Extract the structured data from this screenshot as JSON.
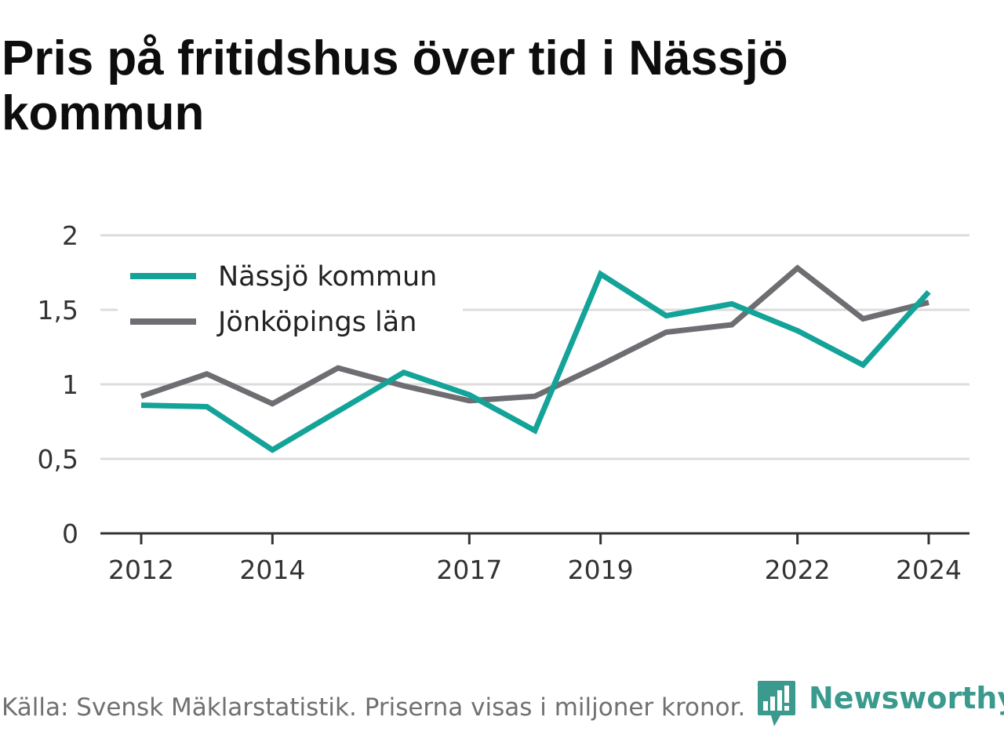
{
  "title": "Pris på fritidshus över tid i Nässjö kommun",
  "footer": {
    "source": "Källa: Svensk Mäklarstatistik. Priserna visas i miljoner kronor."
  },
  "brand": {
    "name": "Newsworthy",
    "icon": "newsworthy-logo-icon",
    "color": "#3a9a8d"
  },
  "chart_data": {
    "type": "line",
    "title": "Pris på fritidshus över tid i Nässjö kommun",
    "xlabel": "",
    "ylabel": "",
    "x": [
      2012,
      2013,
      2014,
      2015,
      2016,
      2017,
      2018,
      2019,
      2020,
      2021,
      2022,
      2023,
      2024
    ],
    "x_ticks": [
      2012,
      2014,
      2017,
      2019,
      2022,
      2024
    ],
    "y_ticks": [
      "0",
      "0,5",
      "1",
      "1,5",
      "2"
    ],
    "y_tick_values": [
      0,
      0.5,
      1,
      1.5,
      2
    ],
    "ylim": [
      0,
      2
    ],
    "xlim": [
      2012,
      2024
    ],
    "grid": true,
    "legend_position": "top-left",
    "series": [
      {
        "name": "Nässjö kommun",
        "color": "#13a398",
        "values": [
          0.86,
          0.85,
          0.56,
          0.82,
          1.08,
          0.93,
          0.69,
          1.74,
          1.46,
          1.54,
          1.36,
          1.13,
          1.62
        ]
      },
      {
        "name": "Jönköpings län",
        "color": "#6e6d72",
        "values": [
          0.92,
          1.07,
          0.87,
          1.11,
          0.99,
          0.89,
          0.92,
          1.13,
          1.35,
          1.4,
          1.78,
          1.44,
          1.55
        ]
      }
    ]
  }
}
